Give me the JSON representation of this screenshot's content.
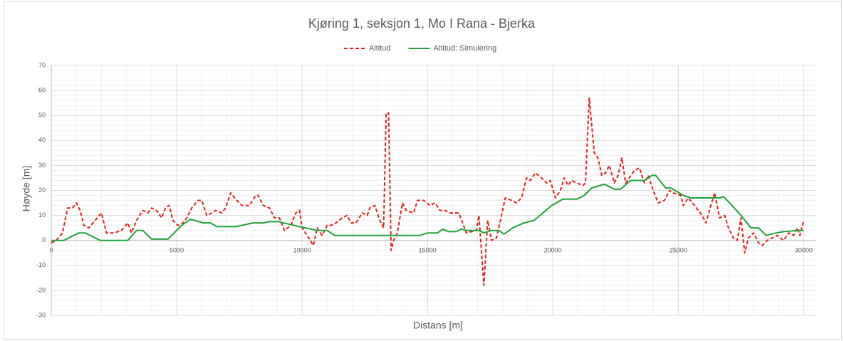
{
  "chart_data": {
    "type": "line",
    "title": "Kjøring 1, seksjon 1, Mo I Rana - Bjerka",
    "xlabel": "Distans [m]",
    "ylabel": "Høyde [m]",
    "xlim": [
      0,
      30500
    ],
    "xticks": [
      0,
      5000,
      10000,
      15000,
      20000,
      25000,
      30000
    ],
    "ylim": [
      -30,
      70
    ],
    "yticks": [
      -30,
      -20,
      -10,
      0,
      10,
      20,
      30,
      40,
      50,
      60,
      70
    ],
    "grid": true,
    "minor_grid": true,
    "legend": "top",
    "series": [
      {
        "name": "Altitud",
        "color": "#e0201b",
        "dash": true,
        "x": [
          0,
          200,
          450,
          650,
          850,
          1000,
          1150,
          1300,
          1500,
          1750,
          2000,
          2200,
          2500,
          2800,
          3050,
          3200,
          3400,
          3650,
          3850,
          4000,
          4200,
          4400,
          4550,
          4700,
          4850,
          5050,
          5250,
          5400,
          5600,
          5850,
          6000,
          6200,
          6400,
          6550,
          6800,
          6950,
          7150,
          7400,
          7600,
          7900,
          8150,
          8250,
          8450,
          8700,
          8900,
          9100,
          9300,
          9550,
          9750,
          9900,
          10000,
          10200,
          10450,
          10600,
          10800,
          11000,
          11150,
          11350,
          11600,
          11800,
          11950,
          12150,
          12400,
          12600,
          12700,
          12900,
          13100,
          13250,
          13350,
          13450,
          13550,
          13650,
          13800,
          14000,
          14150,
          14450,
          14600,
          14850,
          15100,
          15300,
          15500,
          15700,
          15900,
          16250,
          16550,
          16950,
          17050,
          17250,
          17400,
          17550,
          17750,
          17950,
          18100,
          18350,
          18550,
          18750,
          18950,
          19100,
          19300,
          19550,
          19750,
          19900,
          20100,
          20300,
          20450,
          20600,
          20750,
          20950,
          21200,
          21300,
          21450,
          21650,
          21800,
          21950,
          22100,
          22250,
          22450,
          22600,
          22750,
          22900,
          23050,
          23250,
          23450,
          23650,
          23800,
          24000,
          24200,
          24450,
          24650,
          24800,
          25100,
          25200,
          25400,
          25650,
          25950,
          26100,
          26300,
          26450,
          26650,
          26850,
          27000,
          27200,
          27350,
          27500,
          27650,
          27800,
          28000,
          28200,
          28350,
          28550,
          28750,
          28950,
          29200,
          29400,
          29600,
          29750,
          29850,
          30000
        ],
        "values": [
          -1,
          0,
          3,
          13,
          13,
          15,
          12,
          6,
          5,
          8,
          11,
          3,
          3,
          4,
          7,
          3,
          8,
          12,
          11,
          13,
          12,
          9,
          13,
          14,
          8,
          6,
          7,
          9,
          13,
          16,
          16,
          10,
          11,
          12,
          11,
          13,
          19,
          16,
          14,
          14,
          18,
          18,
          14,
          13,
          9,
          9,
          4,
          6,
          11,
          12,
          5,
          2,
          -2,
          5,
          2,
          6,
          6,
          7,
          9,
          10,
          7,
          7,
          11,
          10,
          13,
          14,
          8,
          5,
          51,
          51,
          -4,
          0,
          3,
          15,
          12,
          11,
          16,
          16,
          14,
          15,
          12,
          12,
          11,
          11,
          3,
          4,
          10,
          -18,
          8,
          0,
          1,
          10,
          17,
          16,
          15,
          17,
          25,
          24,
          27,
          25,
          23,
          24,
          17,
          20,
          25,
          22,
          24,
          23,
          22,
          23,
          57,
          35,
          33,
          26,
          27,
          30,
          23,
          26,
          33,
          23,
          25,
          28,
          29,
          23,
          26,
          20,
          15,
          16,
          20,
          19,
          18,
          14,
          17,
          14,
          10,
          7,
          14,
          19,
          9,
          10,
          5,
          1,
          0,
          9,
          -5,
          1,
          3,
          -1,
          -2,
          0,
          1,
          2,
          0,
          3,
          2,
          5,
          2,
          8
        ]
      },
      {
        "name": "Altitud: Simulering",
        "color": "#1fa33a",
        "dash": false,
        "x": [
          0,
          500,
          1100,
          1350,
          1950,
          3050,
          3400,
          3650,
          4000,
          4650,
          5200,
          5550,
          6050,
          6350,
          6600,
          7350,
          8050,
          8450,
          8700,
          9050,
          9900,
          10600,
          11000,
          11300,
          13850,
          14700,
          15000,
          15400,
          15600,
          15850,
          16150,
          16350,
          16550,
          17050,
          17250,
          17550,
          17850,
          18050,
          18400,
          18850,
          19250,
          19950,
          20400,
          20950,
          21250,
          21550,
          22050,
          22450,
          22700,
          23100,
          23650,
          23950,
          24100,
          24500,
          24700,
          25200,
          25500,
          26650,
          26800,
          27050,
          27500,
          27900,
          28200,
          28500,
          28900,
          29200,
          29750,
          30000
        ],
        "values": [
          0,
          0,
          3,
          3,
          0,
          0,
          4,
          4,
          0.5,
          0.5,
          6,
          8.5,
          7,
          7,
          5.5,
          5.5,
          7,
          7,
          7.5,
          7.5,
          5.5,
          4,
          4,
          2,
          2,
          2,
          3,
          3,
          4.5,
          3.5,
          3.5,
          4.5,
          4,
          4,
          3,
          4,
          4,
          2.5,
          5,
          7,
          8,
          14,
          16.5,
          16.5,
          18,
          21,
          22.5,
          20.5,
          20.5,
          24,
          24,
          26,
          26,
          21,
          21,
          18,
          17,
          17,
          17.5,
          15,
          10,
          5,
          5,
          2,
          3,
          3.5,
          4,
          4
        ]
      }
    ]
  }
}
